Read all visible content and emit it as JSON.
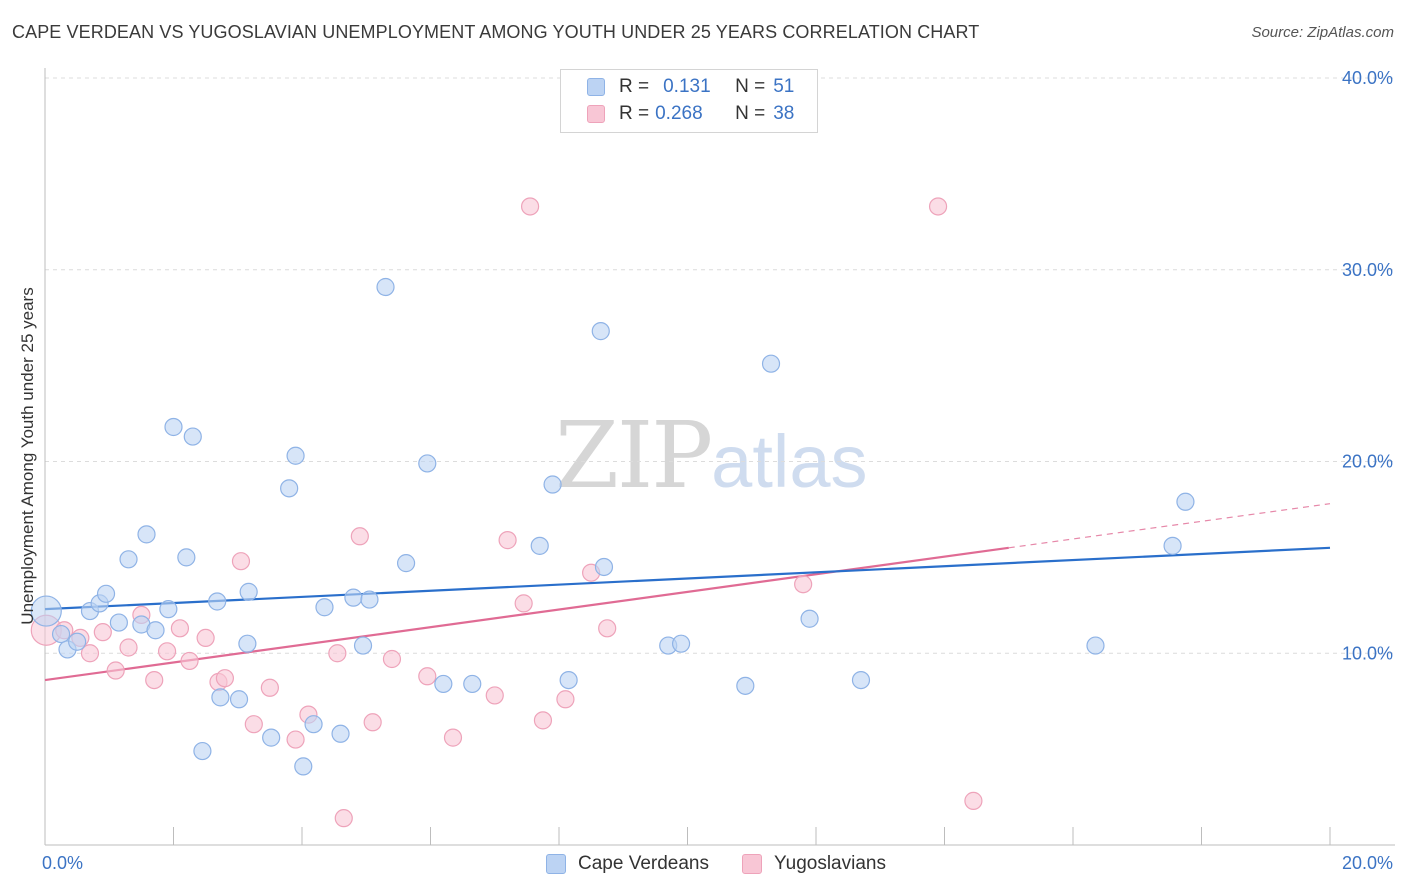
{
  "header": {
    "title": "CAPE VERDEAN VS YUGOSLAVIAN UNEMPLOYMENT AMONG YOUTH UNDER 25 YEARS CORRELATION CHART",
    "source": "Source: ZipAtlas.com"
  },
  "watermark": {
    "zip": "ZIP",
    "atlas": "atlas"
  },
  "legend": {
    "r_label": "R =",
    "n_label": "N =",
    "rows": [
      {
        "name": "Cape Verdeans",
        "r": "0.131",
        "n": "51"
      },
      {
        "name": "Yugoslavians",
        "r": "0.268",
        "n": "38"
      }
    ]
  },
  "colors": {
    "series1_fill": "#bcd3f3",
    "series1_stroke": "#8fb3e6",
    "series1_line": "#2a6fcb",
    "series2_fill": "#f8c6d5",
    "series2_stroke": "#eea3ba",
    "series2_line": "#e06b94",
    "grid": "#dcdcdc",
    "axis_text": "#3b73c4"
  },
  "chart_data": {
    "type": "scatter",
    "title": "CAPE VERDEAN VS YUGOSLAVIAN UNEMPLOYMENT AMONG YOUTH UNDER 25 YEARS CORRELATION CHART",
    "xlabel": "",
    "ylabel": "Unemployment Among Youth under 25 years",
    "xlim": [
      0,
      20
    ],
    "ylim": [
      0,
      40
    ],
    "x_tick_labels": [
      "0.0%",
      "20.0%"
    ],
    "y_ticks": [
      10,
      20,
      30,
      40
    ],
    "y_tick_labels": [
      "10.0%",
      "20.0%",
      "30.0%",
      "40.0%"
    ],
    "legend_position": "top-center",
    "series": [
      {
        "name": "Cape Verdeans",
        "r": 0.131,
        "n": 51,
        "trend": {
          "x0": 0,
          "y0": 12.3,
          "x1": 20,
          "y1": 15.5
        },
        "points": [
          {
            "x": 0.02,
            "y": 12.2,
            "big": true
          },
          {
            "x": 0.25,
            "y": 11.0
          },
          {
            "x": 0.35,
            "y": 10.2
          },
          {
            "x": 0.5,
            "y": 10.6
          },
          {
            "x": 0.7,
            "y": 12.2
          },
          {
            "x": 0.85,
            "y": 12.6
          },
          {
            "x": 0.95,
            "y": 13.1
          },
          {
            "x": 1.15,
            "y": 11.6
          },
          {
            "x": 1.3,
            "y": 14.9
          },
          {
            "x": 1.5,
            "y": 11.5
          },
          {
            "x": 1.58,
            "y": 16.2
          },
          {
            "x": 1.72,
            "y": 11.2
          },
          {
            "x": 1.92,
            "y": 12.3
          },
          {
            "x": 2.0,
            "y": 21.8
          },
          {
            "x": 2.2,
            "y": 15.0
          },
          {
            "x": 2.3,
            "y": 21.3
          },
          {
            "x": 2.45,
            "y": 4.9
          },
          {
            "x": 2.68,
            "y": 12.7
          },
          {
            "x": 2.73,
            "y": 7.7
          },
          {
            "x": 3.02,
            "y": 7.6
          },
          {
            "x": 3.15,
            "y": 10.5
          },
          {
            "x": 3.17,
            "y": 13.2
          },
          {
            "x": 3.52,
            "y": 5.6
          },
          {
            "x": 3.8,
            "y": 18.6
          },
          {
            "x": 3.9,
            "y": 20.3
          },
          {
            "x": 4.02,
            "y": 4.1
          },
          {
            "x": 4.18,
            "y": 6.3
          },
          {
            "x": 4.35,
            "y": 12.4
          },
          {
            "x": 4.6,
            "y": 5.8
          },
          {
            "x": 4.8,
            "y": 12.9
          },
          {
            "x": 4.95,
            "y": 10.4
          },
          {
            "x": 5.05,
            "y": 12.8
          },
          {
            "x": 5.3,
            "y": 29.1
          },
          {
            "x": 5.62,
            "y": 14.7
          },
          {
            "x": 5.95,
            "y": 19.9
          },
          {
            "x": 6.2,
            "y": 8.4
          },
          {
            "x": 6.65,
            "y": 8.4
          },
          {
            "x": 7.7,
            "y": 15.6
          },
          {
            "x": 7.9,
            "y": 18.8
          },
          {
            "x": 8.15,
            "y": 8.6
          },
          {
            "x": 8.65,
            "y": 26.8
          },
          {
            "x": 8.7,
            "y": 14.5
          },
          {
            "x": 9.7,
            "y": 10.4
          },
          {
            "x": 9.9,
            "y": 10.5
          },
          {
            "x": 10.9,
            "y": 8.3
          },
          {
            "x": 11.3,
            "y": 25.1
          },
          {
            "x": 11.9,
            "y": 11.8
          },
          {
            "x": 12.7,
            "y": 8.6
          },
          {
            "x": 16.35,
            "y": 10.4
          },
          {
            "x": 17.55,
            "y": 15.6
          },
          {
            "x": 17.75,
            "y": 17.9
          }
        ]
      },
      {
        "name": "Yugoslavians",
        "r": 0.268,
        "n": 38,
        "trend": {
          "x0": 0,
          "y0": 8.6,
          "x1": 15.0,
          "y1": 15.5,
          "dash_to_x": 20,
          "dash_to_y": 17.8
        },
        "points": [
          {
            "x": 0.02,
            "y": 11.2,
            "big": true
          },
          {
            "x": 0.3,
            "y": 11.2
          },
          {
            "x": 0.55,
            "y": 10.8
          },
          {
            "x": 0.7,
            "y": 10.0
          },
          {
            "x": 0.9,
            "y": 11.1
          },
          {
            "x": 1.1,
            "y": 9.1
          },
          {
            "x": 1.3,
            "y": 10.3
          },
          {
            "x": 1.5,
            "y": 12.0
          },
          {
            "x": 1.7,
            "y": 8.6
          },
          {
            "x": 1.9,
            "y": 10.1
          },
          {
            "x": 2.1,
            "y": 11.3
          },
          {
            "x": 2.25,
            "y": 9.6
          },
          {
            "x": 2.5,
            "y": 10.8
          },
          {
            "x": 2.7,
            "y": 8.5
          },
          {
            "x": 2.8,
            "y": 8.7
          },
          {
            "x": 3.05,
            "y": 14.8
          },
          {
            "x": 3.25,
            "y": 6.3
          },
          {
            "x": 3.5,
            "y": 8.2
          },
          {
            "x": 3.9,
            "y": 5.5
          },
          {
            "x": 4.1,
            "y": 6.8
          },
          {
            "x": 4.55,
            "y": 10.0
          },
          {
            "x": 4.65,
            "y": 1.4
          },
          {
            "x": 4.9,
            "y": 16.1
          },
          {
            "x": 5.1,
            "y": 6.4
          },
          {
            "x": 5.4,
            "y": 9.7
          },
          {
            "x": 5.95,
            "y": 8.8
          },
          {
            "x": 6.35,
            "y": 5.6
          },
          {
            "x": 7.0,
            "y": 7.8
          },
          {
            "x": 7.2,
            "y": 15.9
          },
          {
            "x": 7.45,
            "y": 12.6
          },
          {
            "x": 7.55,
            "y": 33.3
          },
          {
            "x": 7.75,
            "y": 6.5
          },
          {
            "x": 8.1,
            "y": 7.6
          },
          {
            "x": 8.5,
            "y": 14.2
          },
          {
            "x": 8.75,
            "y": 11.3
          },
          {
            "x": 11.8,
            "y": 13.6
          },
          {
            "x": 13.9,
            "y": 33.3
          },
          {
            "x": 14.45,
            "y": 2.3
          }
        ]
      }
    ]
  }
}
